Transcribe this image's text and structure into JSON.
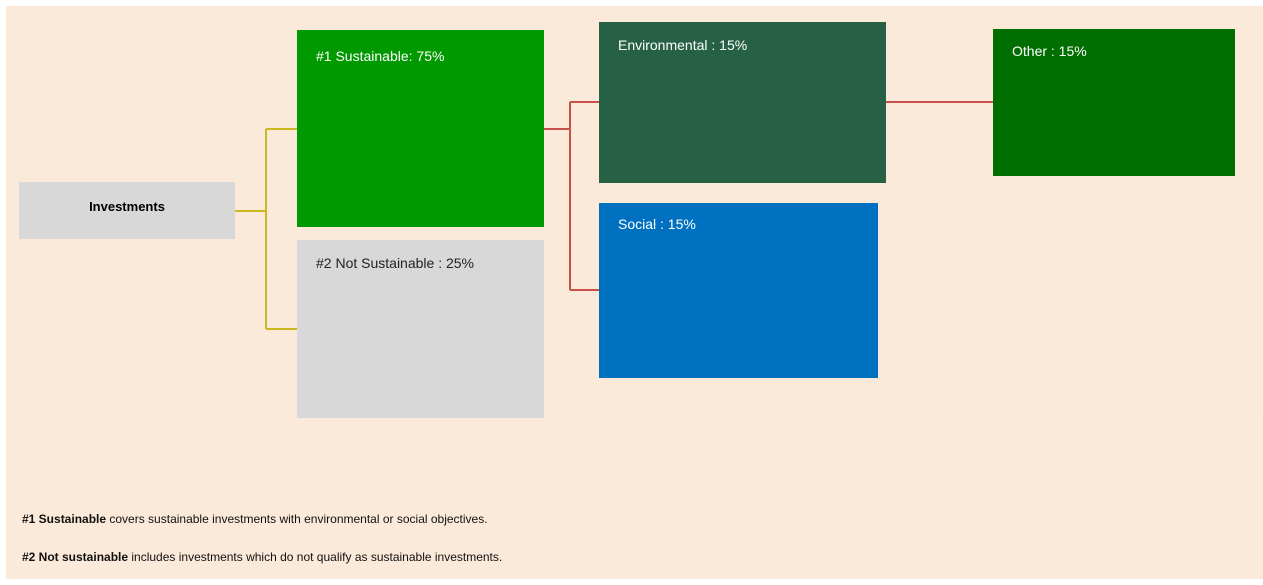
{
  "nodes": {
    "investments": "Investments",
    "sustainable": "#1 Sustainable: 75%",
    "not_sustainable": "#2 Not Sustainable : 25%",
    "environmental": "Environmental : 15%",
    "social": "Social : 15%",
    "other": "Other : 15%"
  },
  "colors": {
    "background": "#fbe9d9",
    "investments": "#d8d8d8",
    "sustainable": "#009900",
    "not_sustainable": "#d8d8d8",
    "environmental": "#266146",
    "social": "#0070c0",
    "other": "#006e00",
    "connector_primary": "#c9b820",
    "connector_secondary": "#c8504a"
  },
  "footnotes": [
    {
      "term": "#1 Sustainable",
      "text": " covers sustainable investments with environmental or social objectives."
    },
    {
      "term": "#2 Not sustainable",
      "text": " includes investments which do not qualify as sustainable investments."
    }
  ]
}
